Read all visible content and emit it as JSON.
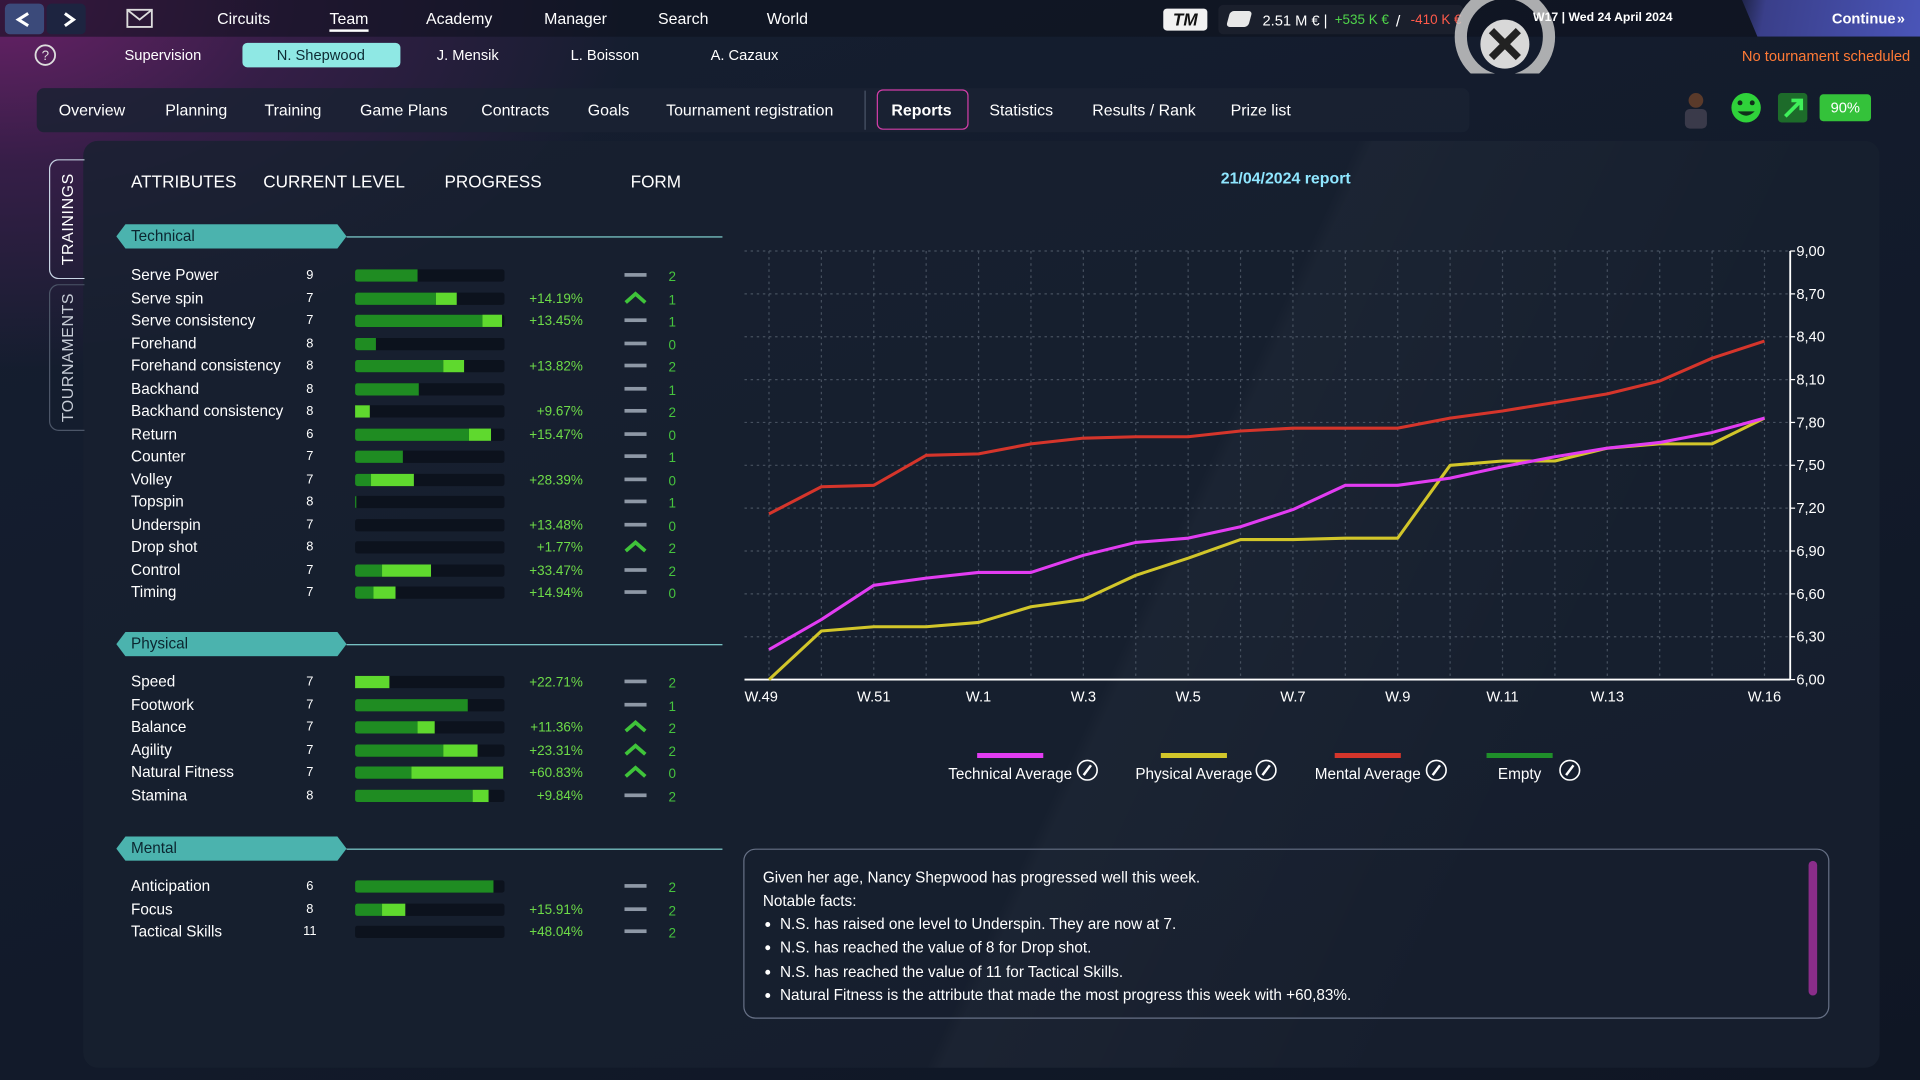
{
  "top_nav": {
    "items": [
      "Circuits",
      "Team",
      "Academy",
      "Manager",
      "Search",
      "World"
    ],
    "active": 1
  },
  "logo": "TM",
  "finance": {
    "balance": "2.51 M €",
    "income": "+535 K €",
    "expense": "-410 K €"
  },
  "date": "W17 | Wed 24 April 2024",
  "continue": "Continue",
  "players": {
    "items": [
      "Supervision",
      "N. Shepwood",
      "J. Mensik",
      "L. Boisson",
      "A. Cazaux"
    ],
    "active": 1
  },
  "tournament_status": "No tournament scheduled",
  "tabs": {
    "items": [
      "Overview",
      "Planning",
      "Training",
      "Game Plans",
      "Contracts",
      "Goals",
      "Tournament registration",
      "Reports",
      "Statistics",
      "Results / Rank",
      "Prize list"
    ],
    "active": 7
  },
  "morale": "90%",
  "side_tabs": {
    "items": [
      "TRAININGS",
      "TOURNAMENTS"
    ],
    "active": 0
  },
  "columns": [
    "ATTRIBUTES",
    "CURRENT LEVEL",
    "PROGRESS",
    "FORM"
  ],
  "sections": [
    {
      "name": "Technical",
      "rows": [
        {
          "name": "Serve Power",
          "level": 9,
          "bar": [
            42,
            0
          ],
          "form": {
            "trend": "flat",
            "value": 2
          }
        },
        {
          "name": "Serve spin",
          "level": 7,
          "bar": [
            54,
            14
          ],
          "progress": "+14.19%",
          "form": {
            "trend": "up",
            "value": 1
          }
        },
        {
          "name": "Serve consistency",
          "level": 7,
          "bar": [
            85,
            13
          ],
          "progress": "+13.45%",
          "form": {
            "trend": "flat",
            "value": 1
          }
        },
        {
          "name": "Forehand",
          "level": 8,
          "bar": [
            14,
            0
          ],
          "form": {
            "trend": "flat",
            "value": 0
          }
        },
        {
          "name": "Forehand consistency",
          "level": 8,
          "bar": [
            59,
            14
          ],
          "progress": "+13.82%",
          "form": {
            "trend": "flat",
            "value": 2
          }
        },
        {
          "name": "Backhand",
          "level": 8,
          "bar": [
            43,
            0
          ],
          "form": {
            "trend": "flat",
            "value": 1
          }
        },
        {
          "name": "Backhand consistency",
          "level": 8,
          "bar": [
            0,
            10
          ],
          "progress": "+9.67%",
          "form": {
            "trend": "flat",
            "value": 2
          }
        },
        {
          "name": "Return",
          "level": 6,
          "bar": [
            76,
            15
          ],
          "progress": "+15.47%",
          "form": {
            "trend": "flat",
            "value": 0
          }
        },
        {
          "name": "Counter",
          "level": 7,
          "bar": [
            32,
            0
          ],
          "form": {
            "trend": "flat",
            "value": 1
          }
        },
        {
          "name": "Volley",
          "level": 7,
          "bar": [
            11,
            28
          ],
          "progress": "+28.39%",
          "form": {
            "trend": "flat",
            "value": 0
          }
        },
        {
          "name": "Topspin",
          "level": 8,
          "bar": [
            1,
            0
          ],
          "form": {
            "trend": "flat",
            "value": 1
          }
        },
        {
          "name": "Underspin",
          "level": 7,
          "bar": [
            0,
            0
          ],
          "progress": "+13.48%",
          "form": {
            "trend": "flat",
            "value": 0
          }
        },
        {
          "name": "Drop shot",
          "level": 8,
          "bar": [
            0,
            0
          ],
          "progress": "+1.77%",
          "form": {
            "trend": "up",
            "value": 2
          }
        },
        {
          "name": "Control",
          "level": 7,
          "bar": [
            18,
            33
          ],
          "progress": "+33.47%",
          "form": {
            "trend": "flat",
            "value": 2
          }
        },
        {
          "name": "Timing",
          "level": 7,
          "bar": [
            12,
            15
          ],
          "progress": "+14.94%",
          "form": {
            "trend": "flat",
            "value": 0
          }
        }
      ]
    },
    {
      "name": "Physical",
      "rows": [
        {
          "name": "Speed",
          "level": 7,
          "bar": [
            0,
            23
          ],
          "progress": "+22.71%",
          "form": {
            "trend": "flat",
            "value": 2
          }
        },
        {
          "name": "Footwork",
          "level": 7,
          "bar": [
            75,
            0
          ],
          "form": {
            "trend": "flat",
            "value": 1
          }
        },
        {
          "name": "Balance",
          "level": 7,
          "bar": [
            42,
            11
          ],
          "progress": "+11.36%",
          "form": {
            "trend": "up",
            "value": 2
          }
        },
        {
          "name": "Agility",
          "level": 7,
          "bar": [
            59,
            23
          ],
          "progress": "+23.31%",
          "form": {
            "trend": "up",
            "value": 2
          }
        },
        {
          "name": "Natural Fitness",
          "level": 7,
          "bar": [
            38,
            61
          ],
          "progress": "+60.83%",
          "form": {
            "trend": "up",
            "value": 0
          }
        },
        {
          "name": "Stamina",
          "level": 8,
          "bar": [
            79,
            10
          ],
          "progress": "+9.84%",
          "form": {
            "trend": "flat",
            "value": 2
          }
        }
      ]
    },
    {
      "name": "Mental",
      "rows": [
        {
          "name": "Anticipation",
          "level": 6,
          "bar": [
            93,
            0
          ],
          "form": {
            "trend": "flat",
            "value": 2
          }
        },
        {
          "name": "Focus",
          "level": 8,
          "bar": [
            18,
            16
          ],
          "progress": "+15.91%",
          "form": {
            "trend": "flat",
            "value": 2
          }
        },
        {
          "name": "Tactical Skills",
          "level": 11,
          "bar": [
            0,
            0
          ],
          "progress": "+48.04%",
          "form": {
            "trend": "flat",
            "value": 2
          }
        }
      ]
    }
  ],
  "chart_data": {
    "type": "line",
    "title": "21/04/2024 report",
    "categories": [
      "W.49",
      null,
      "W.51",
      null,
      "W.1",
      null,
      "W.3",
      null,
      "W.5",
      null,
      "W.7",
      null,
      "W.9",
      null,
      "W.11",
      null,
      "W.13",
      null,
      null,
      "W.16"
    ],
    "series": [
      {
        "name": "Technical Average",
        "color": "#e23cf2",
        "values": [
          6.21,
          6.42,
          6.66,
          6.71,
          6.75,
          6.75,
          6.87,
          6.96,
          6.99,
          7.07,
          7.19,
          7.36,
          7.36,
          7.41,
          7.49,
          7.56,
          7.62,
          7.66,
          7.73,
          7.83
        ]
      },
      {
        "name": "Physical Average",
        "color": "#d2c62a",
        "values": [
          6.0,
          6.34,
          6.37,
          6.37,
          6.4,
          6.51,
          6.56,
          6.73,
          6.85,
          6.98,
          6.98,
          6.99,
          6.99,
          7.5,
          7.53,
          7.53,
          7.62,
          7.65,
          7.65,
          7.83
        ]
      },
      {
        "name": "Mental Average",
        "color": "#d5352b",
        "values": [
          7.16,
          7.35,
          7.36,
          7.57,
          7.58,
          7.65,
          7.69,
          7.7,
          7.7,
          7.74,
          7.76,
          7.76,
          7.76,
          7.83,
          7.88,
          7.94,
          8.0,
          8.09,
          8.25,
          8.37
        ]
      },
      {
        "name": "Empty",
        "color": "#1f8f2a",
        "values": [
          null,
          null,
          null,
          null,
          null,
          null,
          null,
          null,
          null,
          null,
          null,
          null,
          null,
          null,
          null,
          null,
          null,
          null,
          null,
          null
        ]
      }
    ],
    "ylim": [
      6,
      9
    ],
    "yticks": [
      {
        "value": 6,
        "label": "6,00"
      },
      {
        "value": 6.3,
        "label": "6,30"
      },
      {
        "value": 6.6,
        "label": "6,60"
      },
      {
        "value": 6.9,
        "label": "6,90"
      },
      {
        "value": 7.2,
        "label": "7,20"
      },
      {
        "value": 7.5,
        "label": "7,50"
      },
      {
        "value": 7.8,
        "label": "7,80"
      },
      {
        "value": 8.1,
        "label": "8,10"
      },
      {
        "value": 8.4,
        "label": "8,40"
      },
      {
        "value": 8.7,
        "label": "8,70"
      },
      {
        "value": 9,
        "label": "9,00"
      }
    ],
    "grid": true
  },
  "report": {
    "lines": [
      "Given her age, Nancy Shepwood has progressed well this week.",
      "Notable facts:"
    ],
    "bullets": [
      "N.S. has raised one level to Underspin. They are now at 7.",
      "N.S. has reached the value of 8 for Drop shot.",
      "N.S. has reached the value of 11 for Tactical Skills.",
      "Natural Fitness is the attribute that made the most progress this week with +60,83%."
    ]
  }
}
